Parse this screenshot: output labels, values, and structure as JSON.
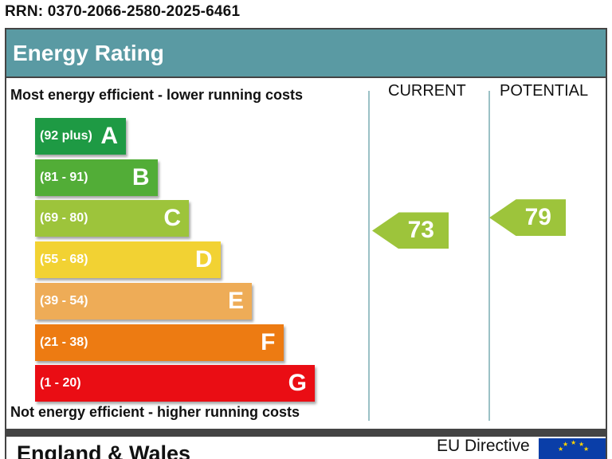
{
  "rrn": "RRN: 0370-2066-2580-2025-6461",
  "header": {
    "title": "Energy Rating"
  },
  "notes": {
    "top": "Most energy efficient - lower running costs",
    "bottom": "Not energy efficient - higher running costs"
  },
  "columns": {
    "current": "CURRENT",
    "potential": "POTENTIAL"
  },
  "footer": {
    "region": "England & Wales",
    "directive": "EU Directive"
  },
  "colors": {
    "header": "#5a9aa3",
    "A": "#1e9a44",
    "B": "#52ad37",
    "C": "#9dc43b",
    "D": "#f2d233",
    "E": "#eeac57",
    "F": "#ed7b12",
    "G": "#ea0d14",
    "current_arrow": "#9dc43b",
    "potential_arrow": "#9dc43b"
  },
  "chart_data": {
    "type": "bar",
    "bands": [
      {
        "letter": "A",
        "range": "(92 plus)",
        "min": 92,
        "max": 100
      },
      {
        "letter": "B",
        "range": "(81 - 91)",
        "min": 81,
        "max": 91
      },
      {
        "letter": "C",
        "range": "(69 - 80)",
        "min": 69,
        "max": 80
      },
      {
        "letter": "D",
        "range": "(55 - 68)",
        "min": 55,
        "max": 68
      },
      {
        "letter": "E",
        "range": "(39 - 54)",
        "min": 39,
        "max": 54
      },
      {
        "letter": "F",
        "range": "(21 - 38)",
        "min": 21,
        "max": 38
      },
      {
        "letter": "G",
        "range": "(1 - 20)",
        "min": 1,
        "max": 20
      }
    ],
    "current": {
      "value": 73,
      "band": "C",
      "label": "73"
    },
    "potential": {
      "value": 79,
      "band": "C",
      "label": "79"
    }
  }
}
